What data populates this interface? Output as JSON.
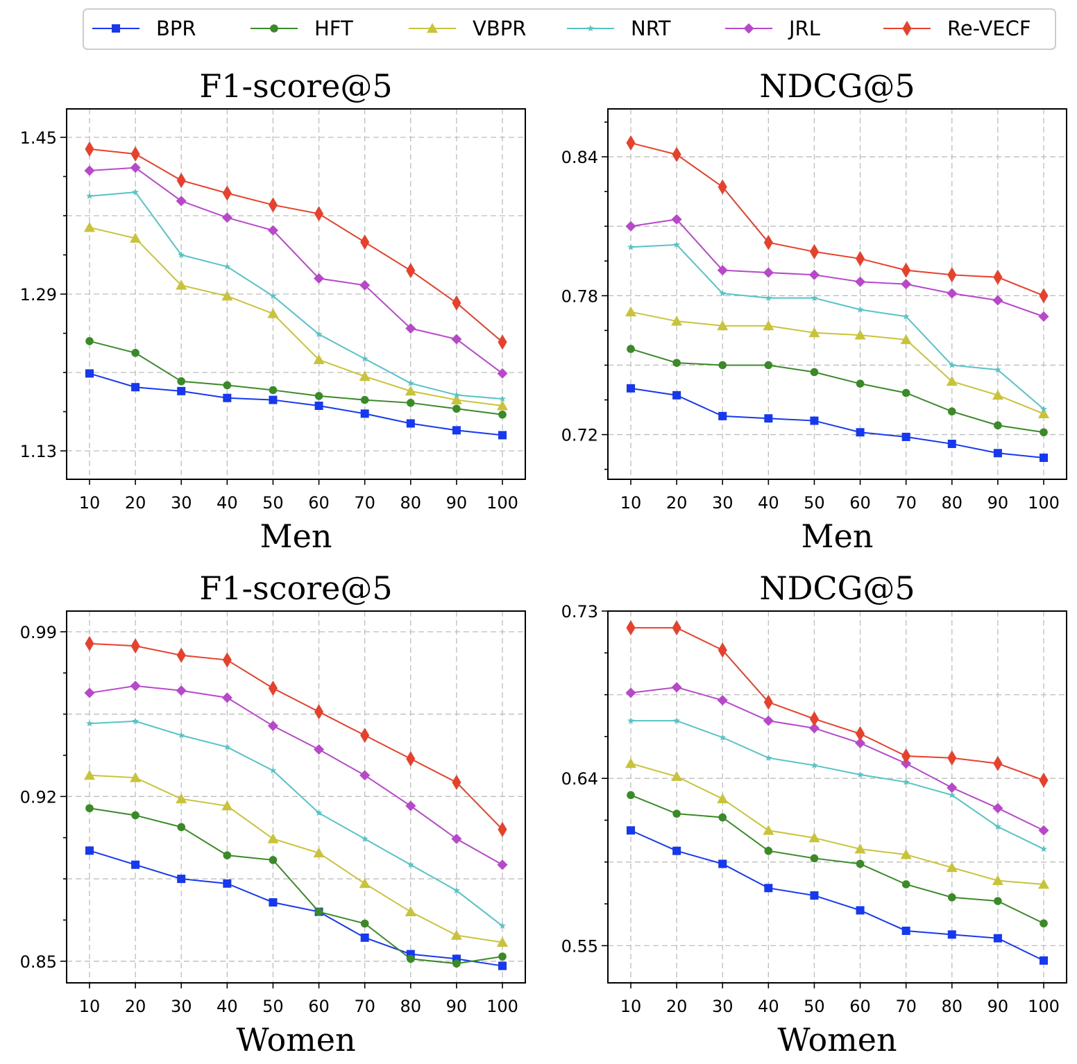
{
  "legend": {
    "entries": [
      {
        "name": "BPR",
        "color": "#1538f0",
        "marker": "square"
      },
      {
        "name": "HFT",
        "color": "#3a8a28",
        "marker": "circle"
      },
      {
        "name": "VBPR",
        "color": "#c9c339",
        "marker": "triangle"
      },
      {
        "name": "NRT",
        "color": "#56c3c6",
        "marker": "star"
      },
      {
        "name": "JRL",
        "color": "#b847cc",
        "marker": "diamond"
      },
      {
        "name": "Re-VECF",
        "color": "#e8402a",
        "marker": "thin_diamond"
      }
    ]
  },
  "chart_data": [
    {
      "type": "line",
      "title": "F1-score@5",
      "xlabel": "Men",
      "ylabel": "",
      "x": [
        10,
        20,
        30,
        40,
        50,
        60,
        70,
        80,
        90,
        100
      ],
      "ylim": [
        1.101,
        1.479
      ],
      "yticks": [
        1.13,
        1.29,
        1.45
      ],
      "ytick_labels": [
        "1.13",
        "1.29",
        "1.45"
      ],
      "grid": true,
      "series": [
        {
          "name": "BPR",
          "values": [
            1.209,
            1.195,
            1.191,
            1.184,
            1.182,
            1.176,
            1.168,
            1.158,
            1.151,
            1.146
          ]
        },
        {
          "name": "HFT",
          "values": [
            1.242,
            1.23,
            1.201,
            1.197,
            1.192,
            1.186,
            1.182,
            1.179,
            1.173,
            1.167
          ]
        },
        {
          "name": "VBPR",
          "values": [
            1.358,
            1.347,
            1.299,
            1.288,
            1.27,
            1.223,
            1.206,
            1.191,
            1.182,
            1.176
          ]
        },
        {
          "name": "NRT",
          "values": [
            1.39,
            1.394,
            1.33,
            1.318,
            1.288,
            1.249,
            1.224,
            1.199,
            1.187,
            1.183
          ]
        },
        {
          "name": "JRL",
          "values": [
            1.416,
            1.419,
            1.385,
            1.368,
            1.355,
            1.306,
            1.299,
            1.255,
            1.244,
            1.209
          ]
        },
        {
          "name": "Re-VECF",
          "values": [
            1.438,
            1.433,
            1.406,
            1.393,
            1.381,
            1.372,
            1.343,
            1.314,
            1.281,
            1.241
          ]
        }
      ]
    },
    {
      "type": "line",
      "title": "NDCG@5",
      "xlabel": "Men",
      "ylabel": "",
      "x": [
        10,
        20,
        30,
        40,
        50,
        60,
        70,
        80,
        90,
        100
      ],
      "ylim": [
        0.7007,
        0.8607
      ],
      "yticks": [
        0.72,
        0.78,
        0.84
      ],
      "ytick_labels": [
        "0.72",
        "0.78",
        "0.84"
      ],
      "grid": true,
      "series": [
        {
          "name": "BPR",
          "values": [
            0.74,
            0.737,
            0.728,
            0.727,
            0.726,
            0.721,
            0.719,
            0.716,
            0.712,
            0.71
          ]
        },
        {
          "name": "HFT",
          "values": [
            0.757,
            0.751,
            0.75,
            0.75,
            0.747,
            0.742,
            0.738,
            0.73,
            0.724,
            0.721
          ]
        },
        {
          "name": "VBPR",
          "values": [
            0.773,
            0.769,
            0.767,
            0.767,
            0.764,
            0.763,
            0.761,
            0.743,
            0.737,
            0.729
          ]
        },
        {
          "name": "NRT",
          "values": [
            0.801,
            0.802,
            0.781,
            0.779,
            0.779,
            0.774,
            0.771,
            0.75,
            0.748,
            0.731
          ]
        },
        {
          "name": "JRL",
          "values": [
            0.81,
            0.813,
            0.791,
            0.79,
            0.789,
            0.786,
            0.785,
            0.781,
            0.778,
            0.771
          ]
        },
        {
          "name": "Re-VECF",
          "values": [
            0.846,
            0.841,
            0.827,
            0.803,
            0.799,
            0.796,
            0.791,
            0.789,
            0.788,
            0.78
          ]
        }
      ]
    },
    {
      "type": "line",
      "title": "F1-score@5",
      "xlabel": "Women",
      "ylabel": "",
      "x": [
        10,
        20,
        30,
        40,
        50,
        60,
        70,
        80,
        90,
        100
      ],
      "ylim": [
        0.8408,
        0.9988
      ],
      "yticks": [
        0.85,
        0.92,
        0.99
      ],
      "ytick_labels": [
        "0.85",
        "0.92",
        "0.99"
      ],
      "grid": true,
      "series": [
        {
          "name": "BPR",
          "values": [
            0.897,
            0.891,
            0.885,
            0.883,
            0.875,
            0.871,
            0.86,
            0.853,
            0.851,
            0.848
          ]
        },
        {
          "name": "HFT",
          "values": [
            0.915,
            0.912,
            0.907,
            0.895,
            0.893,
            0.871,
            0.866,
            0.851,
            0.849,
            0.852
          ]
        },
        {
          "name": "VBPR",
          "values": [
            0.929,
            0.928,
            0.919,
            0.916,
            0.902,
            0.896,
            0.883,
            0.871,
            0.861,
            0.858
          ]
        },
        {
          "name": "NRT",
          "values": [
            0.951,
            0.952,
            0.946,
            0.941,
            0.931,
            0.913,
            0.902,
            0.891,
            0.88,
            0.865
          ]
        },
        {
          "name": "JRL",
          "values": [
            0.964,
            0.967,
            0.965,
            0.962,
            0.95,
            0.94,
            0.929,
            0.916,
            0.902,
            0.891
          ]
        },
        {
          "name": "Re-VECF",
          "values": [
            0.985,
            0.984,
            0.98,
            0.978,
            0.966,
            0.956,
            0.946,
            0.936,
            0.926,
            0.906
          ]
        }
      ]
    },
    {
      "type": "line",
      "title": "NDCG@5",
      "xlabel": "Women",
      "ylabel": "",
      "x": [
        10,
        20,
        30,
        40,
        50,
        60,
        70,
        80,
        90,
        100
      ],
      "ylim": [
        0.53,
        0.73
      ],
      "yticks": [
        0.55,
        0.64,
        0.73
      ],
      "ytick_labels": [
        "0.55",
        "0.64",
        "0.73"
      ],
      "grid": true,
      "series": [
        {
          "name": "BPR",
          "values": [
            0.612,
            0.601,
            0.594,
            0.581,
            0.577,
            0.569,
            0.558,
            0.556,
            0.554,
            0.542
          ]
        },
        {
          "name": "HFT",
          "values": [
            0.631,
            0.621,
            0.619,
            0.601,
            0.597,
            0.594,
            0.583,
            0.576,
            0.574,
            0.562
          ]
        },
        {
          "name": "VBPR",
          "values": [
            0.648,
            0.641,
            0.629,
            0.612,
            0.608,
            0.602,
            0.599,
            0.592,
            0.585,
            0.583
          ]
        },
        {
          "name": "NRT",
          "values": [
            0.671,
            0.671,
            0.662,
            0.651,
            0.647,
            0.642,
            0.638,
            0.631,
            0.614,
            0.602
          ]
        },
        {
          "name": "JRL",
          "values": [
            0.686,
            0.689,
            0.682,
            0.671,
            0.667,
            0.659,
            0.648,
            0.635,
            0.624,
            0.612
          ]
        },
        {
          "name": "Re-VECF",
          "values": [
            0.721,
            0.721,
            0.709,
            0.681,
            0.672,
            0.664,
            0.652,
            0.651,
            0.648,
            0.639
          ]
        }
      ]
    }
  ]
}
